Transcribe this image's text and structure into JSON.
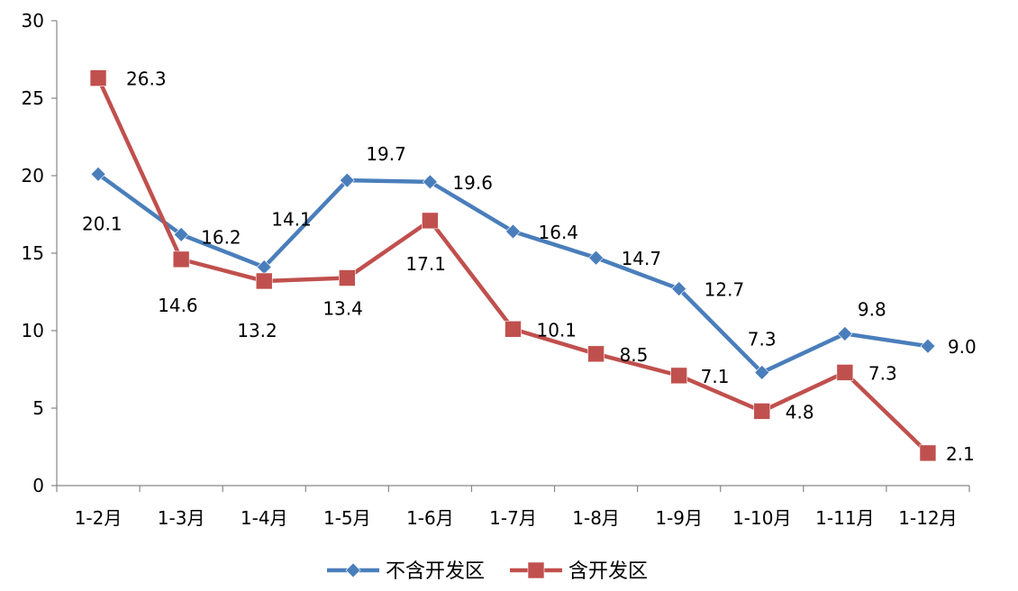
{
  "chart_data": {
    "type": "line",
    "categories": [
      "1-2月",
      "1-3月",
      "1-4月",
      "1-5月",
      "1-6月",
      "1-7月",
      "1-8月",
      "1-9月",
      "1-10月",
      "1-11月",
      "1-12月"
    ],
    "series": [
      {
        "name": "不含开发区",
        "color": "#4a7ebb",
        "marker": "diamond",
        "values": [
          20.1,
          16.2,
          14.1,
          19.7,
          19.6,
          16.4,
          14.7,
          12.7,
          7.3,
          9.8,
          9.0
        ],
        "labels": [
          "20.1",
          "16.2",
          "14.1",
          "19.7",
          "19.6",
          "16.4",
          "14.7",
          "12.7",
          "7.3",
          "9.8",
          "9.0"
        ]
      },
      {
        "name": "含开发区",
        "color": "#c0504d",
        "marker": "square",
        "values": [
          26.3,
          14.6,
          13.2,
          13.4,
          17.1,
          10.1,
          8.5,
          7.1,
          4.8,
          7.3,
          2.1
        ],
        "labels": [
          "26.3",
          "14.6",
          "13.2",
          "13.4",
          "17.1",
          "10.1",
          "8.5",
          "7.1",
          "4.8",
          "7.3",
          "2.1"
        ]
      }
    ],
    "yticks": [
      "0",
      "5",
      "10",
      "15",
      "20",
      "25",
      "30"
    ],
    "ylim": [
      0,
      30
    ],
    "grid": false,
    "legend_position": "bottom"
  }
}
